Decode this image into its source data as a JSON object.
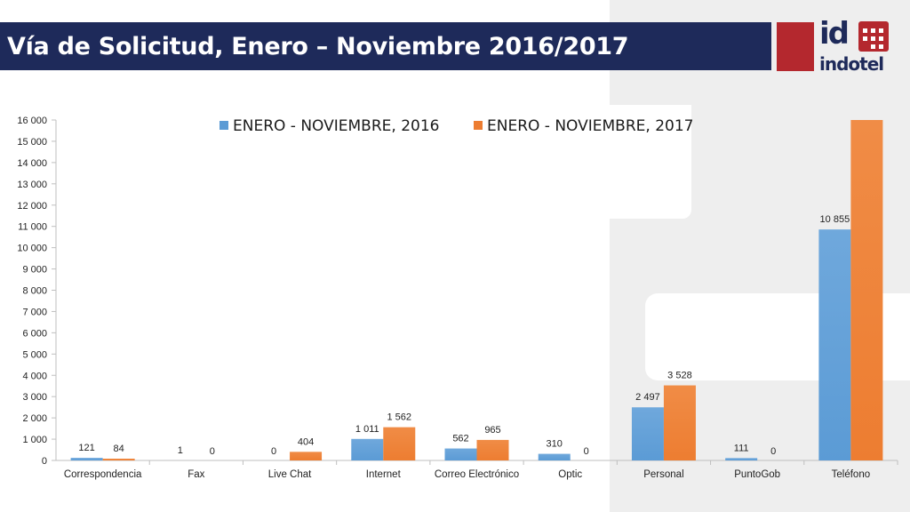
{
  "header": {
    "title": "Vía de Solicitud, Enero – Noviembre 2016/2017",
    "logo_id": "id",
    "logo_word": "indotel"
  },
  "colors": {
    "title_bg": "#1e2a5a",
    "accent_red": "#b4282e",
    "series_2016": "#5b9bd5",
    "series_2017": "#ed7d31"
  },
  "chart_data": {
    "type": "bar",
    "categories": [
      "Correspondencia",
      "Fax",
      "Live Chat",
      "Internet",
      "Correo Electrónico",
      "Optic",
      "Personal",
      "PuntoGob",
      "Teléfono"
    ],
    "series": [
      {
        "name": "ENERO  - NOVIEMBRE, 2016",
        "values": [
          121,
          1,
          0,
          1011,
          562,
          310,
          2497,
          111,
          10855
        ],
        "labels": [
          "121",
          "1",
          "0",
          "1 011",
          "562",
          "310",
          "2 497",
          "111",
          "10 855"
        ]
      },
      {
        "name": "ENERO - NOVIEMBRE,  2017",
        "values": [
          84,
          0,
          404,
          1562,
          965,
          0,
          3528,
          0,
          16000
        ],
        "labels": [
          "84",
          "0",
          "404",
          "1 562",
          "965",
          "0",
          "3 528",
          "0",
          ""
        ]
      }
    ],
    "ylim": [
      0,
      16000
    ],
    "yticks": [
      "0",
      "1 000",
      "2 000",
      "3 000",
      "4 000",
      "5 000",
      "6 000",
      "7 000",
      "8 000",
      "9 000",
      "10 000",
      "11 000",
      "12 000",
      "13 000",
      "14 000",
      "15 000",
      "16 000"
    ],
    "grid": false,
    "legend_position": "top"
  }
}
